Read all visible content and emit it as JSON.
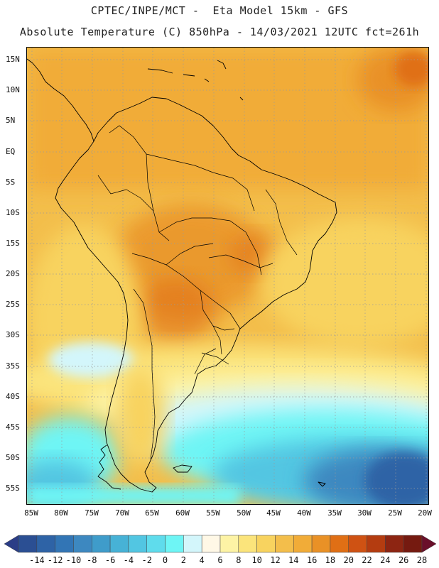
{
  "title_line1": "CPTEC/INPE/MCT -  Eta Model 15km - GFS",
  "title_line2": "Absolute Temperature (C) 850hPa - 14/03/2021 12UTC fct=261h",
  "latitude_labels": [
    "15N",
    "10N",
    "5N",
    "EQ",
    "5S",
    "10S",
    "15S",
    "20S",
    "25S",
    "30S",
    "35S",
    "40S",
    "45S",
    "50S",
    "55S"
  ],
  "longitude_labels": [
    "85W",
    "80W",
    "75W",
    "70W",
    "65W",
    "60W",
    "55W",
    "50W",
    "45W",
    "40W",
    "35W",
    "30W",
    "25W",
    "20W"
  ],
  "colorbar": {
    "labels": [
      "-14",
      "-12",
      "-10",
      "-8",
      "-6",
      "-4",
      "-2",
      "0",
      "2",
      "4",
      "6",
      "8",
      "10",
      "12",
      "14",
      "16",
      "18",
      "20",
      "22",
      "24",
      "26",
      "28"
    ],
    "colors": [
      "#2b4f93",
      "#2e63a6",
      "#3275b5",
      "#3d88c0",
      "#3f9cca",
      "#47b2d6",
      "#52c6e2",
      "#5fdcec",
      "#6ef5f5",
      "#d3f6fb",
      "#fff8e6",
      "#fdf3a5",
      "#fbe47b",
      "#f8d35f",
      "#f3be4b",
      "#f1ac38",
      "#e99126",
      "#e06f15",
      "#cf5213",
      "#b43c10",
      "#8d2512",
      "#751a10"
    ],
    "low_arrow_color": "#2b3d87",
    "high_arrow_color": "#6a0f2a"
  }
}
